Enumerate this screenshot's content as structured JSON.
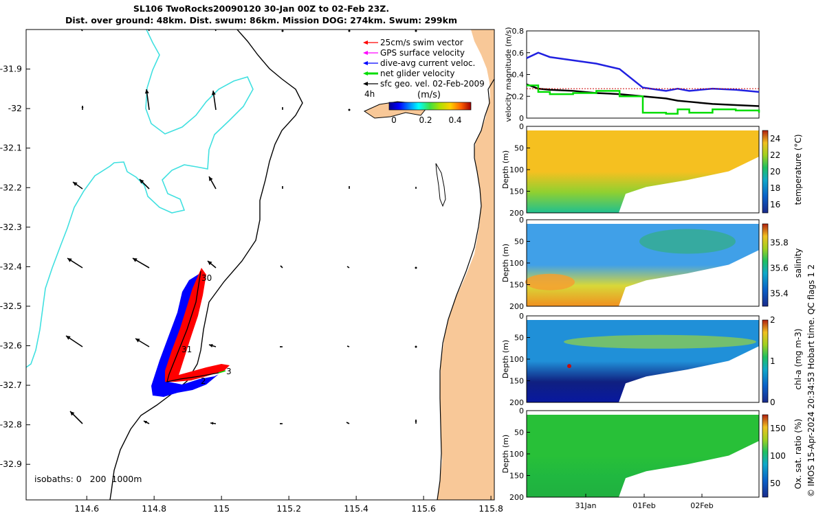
{
  "title": {
    "line1": "SL106 TwoRocks20090120 30-Jan 00Z to 02-Feb 23Z.",
    "line2": "Dist. over ground: 48km. Dist. swum: 86km. Mission DOG: 274km. Swum: 299km"
  },
  "colors": {
    "land": "#F8C898",
    "ocean": "#ffffff",
    "isobath_200": "#40E0E0",
    "swim_red": "#ff0000",
    "gps_magenta": "#ff00ff",
    "dive_blue": "#0000ff",
    "net_green": "#00dd00",
    "geo_black": "#000000"
  },
  "map": {
    "legend": [
      {
        "label": "25cm/s swim vector",
        "color": "#ff0000"
      },
      {
        "label": "GPS surface velocity",
        "color": "#ff00ff"
      },
      {
        "label": "dive-avg current veloc.",
        "color": "#0000ff"
      },
      {
        "label": "net glider velocity",
        "color": "#00dd00"
      },
      {
        "label": "sfc geo. vel. 02-Feb-2009",
        "color": "#000000"
      }
    ],
    "colorbar": {
      "label": "(m/s)",
      "ticks": [
        "0",
        "0.2",
        "0.4"
      ],
      "hours_label": "4h"
    },
    "isobath_text": "isobaths: 0   200  1000m",
    "day_labels": [
      "30",
      "31",
      "2",
      "3"
    ]
  },
  "chart_data": [
    {
      "type": "map",
      "xlim": [
        114.42,
        115.81
      ],
      "ylim": [
        -32.99,
        -31.8
      ],
      "x_ticks": [
        "114.6",
        "114.8",
        "115",
        "115.2",
        "115.4",
        "115.6",
        "115.8"
      ],
      "y_ticks": [
        "-31.9",
        "-32",
        "-32.1",
        "-32.2",
        "-32.3",
        "-32.4",
        "-32.5",
        "-32.6",
        "-32.7",
        "-32.8",
        "-32.9"
      ],
      "track_waypoints_lon_lat": [
        [
          114.95,
          -32.41
        ],
        [
          114.89,
          -32.6
        ],
        [
          114.86,
          -32.69
        ],
        [
          114.93,
          -32.68
        ],
        [
          115.02,
          -32.66
        ]
      ]
    },
    {
      "type": "line",
      "ylabel": "velocity magnitude (m/s)",
      "ylim": [
        0,
        0.8
      ],
      "y_ticks": [
        "0",
        "0.2",
        "0.4",
        "0.6",
        "0.8"
      ],
      "x_fraction": [
        0,
        0.05,
        0.1,
        0.2,
        0.3,
        0.4,
        0.5,
        0.6,
        0.65,
        0.7,
        0.8,
        0.9,
        1
      ],
      "series": [
        {
          "values": [
            0.55,
            0.6,
            0.56,
            0.53,
            0.5,
            0.45,
            0.28,
            0.25,
            0.27,
            0.25,
            0.27,
            0.26,
            0.24
          ]
        },
        {
          "values": [
            0.31,
            0.27,
            0.26,
            0.25,
            0.23,
            0.22,
            0.2,
            0.18,
            0.16,
            0.15,
            0.13,
            0.12,
            0.11
          ]
        },
        {
          "values": [
            0.3,
            0.24,
            0.22,
            0.23,
            0.25,
            0.2,
            0.05,
            0.04,
            0.08,
            0.05,
            0.08,
            0.07,
            0.05
          ]
        },
        {
          "values": [
            0.27,
            0.27,
            0.27,
            0.27,
            0.27,
            0.27,
            0.27,
            0.27,
            0.27,
            0.27,
            0.27,
            0.27,
            0.27
          ]
        }
      ]
    },
    {
      "type": "heatmap",
      "ylabel": "Depth (m)",
      "y_ticks": [
        "0",
        "50",
        "100",
        "150",
        "200"
      ],
      "colorbar_label": "temperature (°C)",
      "colorbar_ticks": [
        "16",
        "18",
        "20",
        "22",
        "24"
      ],
      "clim": [
        15,
        25
      ]
    },
    {
      "type": "heatmap",
      "ylabel": "Depth (m)",
      "y_ticks": [
        "0",
        "50",
        "100",
        "150",
        "200"
      ],
      "colorbar_label": "salinity",
      "colorbar_ticks": [
        "35.4",
        "35.6",
        "35.8"
      ],
      "clim": [
        35.3,
        35.95
      ]
    },
    {
      "type": "heatmap",
      "ylabel": "Depth (m)",
      "y_ticks": [
        "0",
        "50",
        "100",
        "150",
        "200"
      ],
      "colorbar_label": "chl-a (mg m-3)",
      "colorbar_ticks": [
        "0",
        "1",
        "2"
      ],
      "clim": [
        0,
        2
      ]
    },
    {
      "type": "heatmap",
      "ylabel": "Depth (m)",
      "y_ticks": [
        "0",
        "50",
        "100",
        "150",
        "200"
      ],
      "colorbar_label": "Ox. sat. ratio (%)",
      "colorbar_ticks": [
        "50",
        "100",
        "150"
      ],
      "clim": [
        25,
        175
      ],
      "x_ticks": [
        "31Jan",
        "01Feb",
        "02Feb"
      ]
    }
  ],
  "footer": {
    "qc_text": "Hobart time. QC flags 1  2",
    "credit": "© IMOS 15-Apr-2024 20:34:53 Hobart time. QC flags 1  2"
  }
}
